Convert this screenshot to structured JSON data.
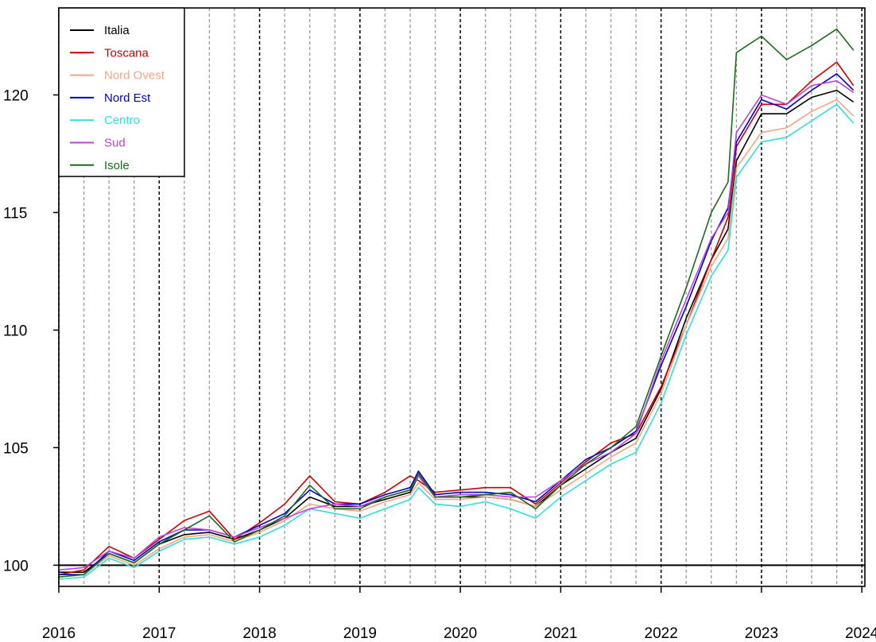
{
  "chart_data": {
    "type": "line",
    "title": "",
    "xlabel": "",
    "ylabel": "",
    "xlim": [
      2016.0,
      2024.03
    ],
    "ylim": [
      99.1,
      123.7
    ],
    "x_ticks": [
      "2016",
      "2017",
      "2018",
      "2019",
      "2020",
      "2021",
      "2022",
      "2023",
      "2024"
    ],
    "y_ticks": [
      "100",
      "105",
      "110",
      "115",
      "120"
    ],
    "reference_line": 100,
    "grid": "dashed vertical lines: black at each year, grey at each quarter",
    "legend_position": "top-left",
    "series": [
      {
        "name": "Italia",
        "color": "#000000",
        "x": [
          2016.0,
          2016.25,
          2016.5,
          2016.75,
          2017.0,
          2017.25,
          2017.5,
          2017.75,
          2018.0,
          2018.25,
          2018.5,
          2018.75,
          2019.0,
          2019.25,
          2019.5,
          2019.583,
          2019.75,
          2020.0,
          2020.25,
          2020.5,
          2020.75,
          2021.0,
          2021.25,
          2021.5,
          2021.75,
          2022.0,
          2022.25,
          2022.5,
          2022.667,
          2022.75,
          2023.0,
          2023.25,
          2023.5,
          2023.75,
          2023.917
        ],
        "y": [
          99.7,
          99.7,
          100.5,
          100.1,
          100.9,
          101.3,
          101.4,
          101.1,
          101.5,
          102.0,
          102.9,
          102.5,
          102.5,
          102.8,
          103.1,
          103.8,
          102.9,
          102.9,
          102.9,
          102.8,
          102.5,
          103.4,
          104.1,
          104.8,
          105.4,
          107.5,
          110.5,
          113.0,
          114.3,
          117.2,
          119.2,
          119.2,
          119.9,
          120.2,
          119.7
        ]
      },
      {
        "name": "Toscana",
        "color": "#cc0000",
        "x": [
          2016.0,
          2016.25,
          2016.5,
          2016.75,
          2017.0,
          2017.25,
          2017.5,
          2017.75,
          2018.0,
          2018.25,
          2018.5,
          2018.75,
          2019.0,
          2019.25,
          2019.5,
          2019.583,
          2019.75,
          2020.0,
          2020.25,
          2020.5,
          2020.75,
          2021.0,
          2021.25,
          2021.5,
          2021.75,
          2022.0,
          2022.25,
          2022.5,
          2022.667,
          2022.75,
          2023.0,
          2023.25,
          2023.5,
          2023.75,
          2023.917
        ],
        "y": [
          99.6,
          99.8,
          100.8,
          100.3,
          101.1,
          101.9,
          102.3,
          101.1,
          101.8,
          102.6,
          103.8,
          102.7,
          102.6,
          103.1,
          103.8,
          103.6,
          103.1,
          103.2,
          103.3,
          103.3,
          102.6,
          103.5,
          104.4,
          105.2,
          105.6,
          107.6,
          110.2,
          113.0,
          114.8,
          117.8,
          119.6,
          119.6,
          120.6,
          121.4,
          120.4
        ]
      },
      {
        "name": "Nord Ovest",
        "color": "#f4a582",
        "x": [
          2016.0,
          2016.25,
          2016.5,
          2016.75,
          2017.0,
          2017.25,
          2017.5,
          2017.75,
          2018.0,
          2018.25,
          2018.5,
          2018.75,
          2019.0,
          2019.25,
          2019.5,
          2019.583,
          2019.75,
          2020.0,
          2020.25,
          2020.5,
          2020.75,
          2021.0,
          2021.25,
          2021.5,
          2021.75,
          2022.0,
          2022.25,
          2022.5,
          2022.667,
          2022.75,
          2023.0,
          2023.25,
          2023.5,
          2023.75,
          2023.917
        ],
        "y": [
          99.6,
          99.6,
          100.4,
          100.0,
          100.7,
          101.2,
          101.3,
          101.0,
          101.4,
          101.9,
          102.6,
          102.4,
          102.3,
          102.7,
          103.0,
          103.5,
          102.8,
          102.8,
          102.9,
          102.8,
          102.5,
          103.2,
          103.9,
          104.6,
          105.2,
          107.3,
          110.2,
          112.7,
          113.9,
          116.9,
          118.4,
          118.6,
          119.3,
          119.8,
          119.1
        ]
      },
      {
        "name": "Nord Est",
        "color": "#0000cc",
        "x": [
          2016.0,
          2016.25,
          2016.5,
          2016.75,
          2017.0,
          2017.25,
          2017.5,
          2017.75,
          2018.0,
          2018.25,
          2018.5,
          2018.75,
          2019.0,
          2019.25,
          2019.5,
          2019.583,
          2019.75,
          2020.0,
          2020.25,
          2020.5,
          2020.75,
          2021.0,
          2021.25,
          2021.5,
          2021.75,
          2022.0,
          2022.25,
          2022.5,
          2022.667,
          2022.75,
          2023.0,
          2023.25,
          2023.5,
          2023.75,
          2023.917
        ],
        "y": [
          99.6,
          99.6,
          100.6,
          100.2,
          101.0,
          101.5,
          101.5,
          101.2,
          101.7,
          102.2,
          103.2,
          102.6,
          102.6,
          103.0,
          103.3,
          104.0,
          103.0,
          103.1,
          103.1,
          103.0,
          102.7,
          103.6,
          104.5,
          105.0,
          105.7,
          108.5,
          111.0,
          113.8,
          115.2,
          118.0,
          119.8,
          119.4,
          120.2,
          120.9,
          120.2
        ]
      },
      {
        "name": "Centro",
        "color": "#33dddd",
        "x": [
          2016.0,
          2016.25,
          2016.5,
          2016.75,
          2017.0,
          2017.25,
          2017.5,
          2017.75,
          2018.0,
          2018.25,
          2018.5,
          2018.75,
          2019.0,
          2019.25,
          2019.5,
          2019.583,
          2019.75,
          2020.0,
          2020.25,
          2020.5,
          2020.75,
          2021.0,
          2021.25,
          2021.5,
          2021.75,
          2022.0,
          2022.25,
          2022.5,
          2022.667,
          2022.75,
          2023.0,
          2023.25,
          2023.5,
          2023.75,
          2023.917
        ],
        "y": [
          99.4,
          99.5,
          100.3,
          99.9,
          100.6,
          101.1,
          101.2,
          100.9,
          101.2,
          101.7,
          102.4,
          102.2,
          102.0,
          102.4,
          102.8,
          103.3,
          102.6,
          102.5,
          102.7,
          102.4,
          102.0,
          102.9,
          103.6,
          104.3,
          104.8,
          106.9,
          109.8,
          112.3,
          113.4,
          116.5,
          118.0,
          118.2,
          118.9,
          119.6,
          118.8
        ]
      },
      {
        "name": "Sud",
        "color": "#bb44dd",
        "x": [
          2016.0,
          2016.25,
          2016.5,
          2016.75,
          2017.0,
          2017.25,
          2017.5,
          2017.75,
          2018.0,
          2018.25,
          2018.5,
          2018.75,
          2019.0,
          2019.25,
          2019.5,
          2019.583,
          2019.75,
          2020.0,
          2020.25,
          2020.5,
          2020.75,
          2021.0,
          2021.25,
          2021.5,
          2021.75,
          2022.0,
          2022.25,
          2022.5,
          2022.667,
          2022.75,
          2023.0,
          2023.25,
          2023.5,
          2023.75,
          2023.917
        ],
        "y": [
          99.8,
          99.9,
          100.6,
          100.3,
          101.2,
          101.6,
          101.5,
          101.2,
          101.6,
          102.0,
          102.4,
          102.6,
          102.5,
          102.9,
          103.2,
          103.8,
          102.9,
          103.0,
          103.0,
          102.9,
          102.9,
          103.6,
          104.3,
          104.8,
          105.6,
          108.7,
          111.3,
          113.9,
          115.0,
          118.4,
          120.0,
          119.6,
          120.4,
          120.6,
          120.1
        ]
      },
      {
        "name": "Isole",
        "color": "#1a6b1a",
        "x": [
          2016.0,
          2016.25,
          2016.5,
          2016.75,
          2017.0,
          2017.25,
          2017.5,
          2017.75,
          2018.0,
          2018.25,
          2018.5,
          2018.75,
          2019.0,
          2019.25,
          2019.5,
          2019.583,
          2019.75,
          2020.0,
          2020.25,
          2020.5,
          2020.75,
          2021.0,
          2021.25,
          2021.5,
          2021.75,
          2022.0,
          2022.25,
          2022.5,
          2022.667,
          2022.75,
          2023.0,
          2023.25,
          2023.5,
          2023.75,
          2023.917
        ],
        "y": [
          99.5,
          99.6,
          100.5,
          100.1,
          100.9,
          101.5,
          102.1,
          101.0,
          101.5,
          102.1,
          103.4,
          102.4,
          102.4,
          102.9,
          103.2,
          103.9,
          102.9,
          102.9,
          103.0,
          103.1,
          102.4,
          103.4,
          104.3,
          105.0,
          105.9,
          108.9,
          111.8,
          115.0,
          116.3,
          121.8,
          122.5,
          121.5,
          122.1,
          122.8,
          121.9
        ]
      }
    ]
  }
}
